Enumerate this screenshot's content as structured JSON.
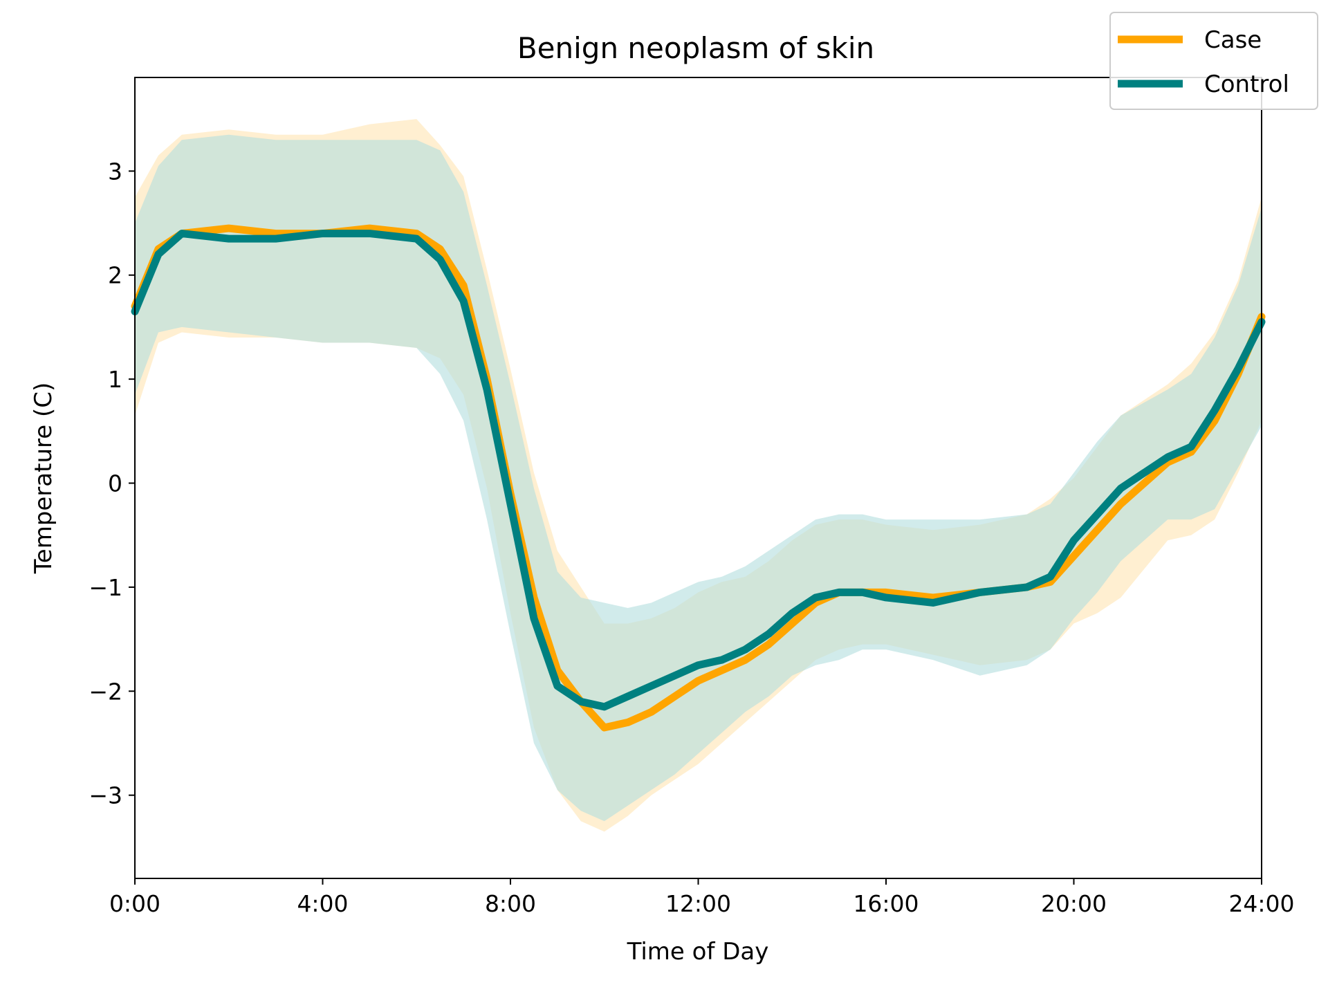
{
  "chart_data": {
    "type": "line",
    "title": "Benign neoplasm of skin",
    "xlabel": "Time of Day",
    "ylabel": "Temperature (C)",
    "x_unit": "hours",
    "xlim": [
      0,
      24
    ],
    "ylim": [
      -3.8,
      3.9
    ],
    "x_ticks": [
      0,
      4,
      8,
      12,
      16,
      20,
      24
    ],
    "x_tick_labels": [
      "0:00",
      "4:00",
      "8:00",
      "12:00",
      "16:00",
      "20:00",
      "24:00"
    ],
    "y_ticks": [
      -3,
      -2,
      -1,
      0,
      1,
      2,
      3
    ],
    "y_tick_labels": [
      "−3",
      "−2",
      "−1",
      "0",
      "1",
      "2",
      "3"
    ],
    "grid": false,
    "legend_position": "top-right",
    "band": "shaded band around each series",
    "series": [
      {
        "name": "Case",
        "color": "#FFA500",
        "band_color": "#FFE4B3",
        "x": [
          0,
          0.5,
          1,
          2,
          3,
          4,
          5,
          6,
          6.5,
          7,
          7.5,
          8,
          8.5,
          9,
          9.5,
          10,
          10.5,
          11,
          11.5,
          12,
          12.5,
          13,
          13.5,
          14,
          14.5,
          15,
          15.5,
          16,
          17,
          18,
          19,
          19.5,
          20,
          20.5,
          21,
          22,
          22.5,
          23,
          23.5,
          24
        ],
        "y": [
          1.7,
          2.25,
          2.4,
          2.45,
          2.4,
          2.4,
          2.45,
          2.4,
          2.25,
          1.9,
          1.0,
          -0.1,
          -1.1,
          -1.8,
          -2.1,
          -2.35,
          -2.3,
          -2.2,
          -2.05,
          -1.9,
          -1.8,
          -1.7,
          -1.55,
          -1.35,
          -1.15,
          -1.05,
          -1.05,
          -1.05,
          -1.1,
          -1.05,
          -1.0,
          -0.95,
          -0.7,
          -0.45,
          -0.2,
          0.2,
          0.3,
          0.6,
          1.05,
          1.6
        ],
        "band_low": [
          0.65,
          1.35,
          1.45,
          1.4,
          1.4,
          1.35,
          1.35,
          1.3,
          1.2,
          0.85,
          -0.05,
          -1.25,
          -2.35,
          -2.95,
          -3.25,
          -3.35,
          -3.2,
          -3.0,
          -2.85,
          -2.7,
          -2.5,
          -2.3,
          -2.1,
          -1.9,
          -1.7,
          -1.6,
          -1.55,
          -1.55,
          -1.65,
          -1.75,
          -1.7,
          -1.6,
          -1.35,
          -1.25,
          -1.1,
          -0.55,
          -0.5,
          -0.35,
          0.1,
          0.6
        ],
        "band_high": [
          2.75,
          3.15,
          3.35,
          3.4,
          3.35,
          3.35,
          3.45,
          3.5,
          3.25,
          2.95,
          2.05,
          1.1,
          0.1,
          -0.65,
          -1.0,
          -1.35,
          -1.35,
          -1.3,
          -1.2,
          -1.05,
          -0.95,
          -0.9,
          -0.75,
          -0.55,
          -0.4,
          -0.35,
          -0.35,
          -0.4,
          -0.45,
          -0.4,
          -0.3,
          -0.15,
          0.05,
          0.35,
          0.65,
          0.95,
          1.15,
          1.45,
          1.95,
          2.75
        ]
      },
      {
        "name": "Control",
        "color": "#008080",
        "band_color": "#B3DDDD",
        "x": [
          0,
          0.5,
          1,
          2,
          3,
          4,
          5,
          6,
          6.5,
          7,
          7.5,
          8,
          8.5,
          9,
          9.5,
          10,
          10.5,
          11,
          11.5,
          12,
          12.5,
          13,
          13.5,
          14,
          14.5,
          15,
          15.5,
          16,
          17,
          18,
          19,
          19.5,
          20,
          20.5,
          21,
          22,
          22.5,
          23,
          23.5,
          24
        ],
        "y": [
          1.65,
          2.2,
          2.4,
          2.35,
          2.35,
          2.4,
          2.4,
          2.35,
          2.15,
          1.75,
          0.9,
          -0.2,
          -1.3,
          -1.95,
          -2.1,
          -2.15,
          -2.05,
          -1.95,
          -1.85,
          -1.75,
          -1.7,
          -1.6,
          -1.45,
          -1.25,
          -1.1,
          -1.05,
          -1.05,
          -1.1,
          -1.15,
          -1.05,
          -1.0,
          -0.9,
          -0.55,
          -0.3,
          -0.05,
          0.25,
          0.35,
          0.7,
          1.1,
          1.55
        ],
        "band_low": [
          0.85,
          1.45,
          1.5,
          1.45,
          1.4,
          1.35,
          1.35,
          1.3,
          1.05,
          0.6,
          -0.35,
          -1.45,
          -2.5,
          -2.95,
          -3.15,
          -3.25,
          -3.1,
          -2.95,
          -2.8,
          -2.6,
          -2.4,
          -2.2,
          -2.05,
          -1.85,
          -1.75,
          -1.7,
          -1.6,
          -1.6,
          -1.7,
          -1.85,
          -1.75,
          -1.6,
          -1.3,
          -1.05,
          -0.75,
          -0.35,
          -0.35,
          -0.25,
          0.15,
          0.55
        ],
        "band_high": [
          2.5,
          3.05,
          3.3,
          3.35,
          3.3,
          3.3,
          3.3,
          3.3,
          3.2,
          2.8,
          1.9,
          0.95,
          -0.05,
          -0.85,
          -1.1,
          -1.15,
          -1.2,
          -1.15,
          -1.05,
          -0.95,
          -0.9,
          -0.8,
          -0.65,
          -0.5,
          -0.35,
          -0.3,
          -0.3,
          -0.35,
          -0.35,
          -0.35,
          -0.3,
          -0.2,
          0.1,
          0.4,
          0.65,
          0.9,
          1.05,
          1.4,
          1.9,
          2.65
        ]
      }
    ]
  }
}
